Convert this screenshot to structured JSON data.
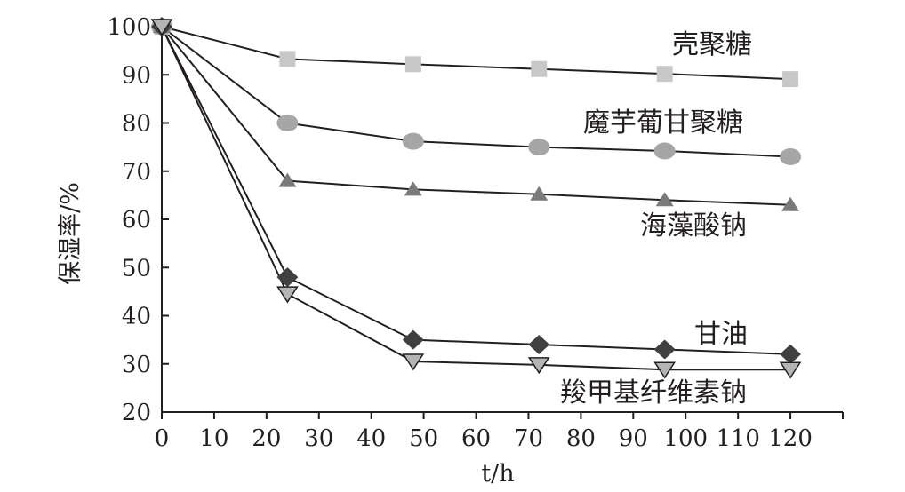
{
  "chart_data": {
    "type": "line",
    "title": "",
    "xlabel": "t/h",
    "ylabel": "保湿率/%",
    "xlim": [
      0,
      130
    ],
    "ylim": [
      20,
      100
    ],
    "xticks": [
      0,
      10,
      20,
      30,
      40,
      50,
      60,
      70,
      80,
      90,
      100,
      110,
      120
    ],
    "yticks": [
      20,
      30,
      40,
      50,
      60,
      70,
      80,
      90,
      100
    ],
    "grid": false,
    "legend": "inline labels",
    "x": [
      0,
      24,
      48,
      72,
      96,
      120
    ],
    "series": [
      {
        "name": "壳聚糖",
        "marker": "square",
        "color": "#c8c8c8",
        "values": [
          100,
          93.3,
          92.2,
          91.2,
          90.2,
          89.1
        ]
      },
      {
        "name": "魔芋葡甘聚糖",
        "marker": "circle",
        "color": "#a6a6a6",
        "values": [
          100,
          80,
          76.2,
          75,
          74.2,
          73
        ]
      },
      {
        "name": "海藻酸钠",
        "marker": "triangle-up",
        "color": "#7a7a7a",
        "values": [
          100,
          68,
          66.2,
          65.2,
          64,
          63
        ]
      },
      {
        "name": "甘油",
        "marker": "diamond",
        "color": "#404040",
        "values": [
          100,
          48,
          35,
          34,
          33,
          32
        ]
      },
      {
        "name": "羧甲基纤维素钠",
        "marker": "triangle-down",
        "color": "#b4b4b4",
        "values": [
          100,
          44.5,
          30.5,
          29.8,
          28.8,
          28.8
        ]
      }
    ]
  }
}
